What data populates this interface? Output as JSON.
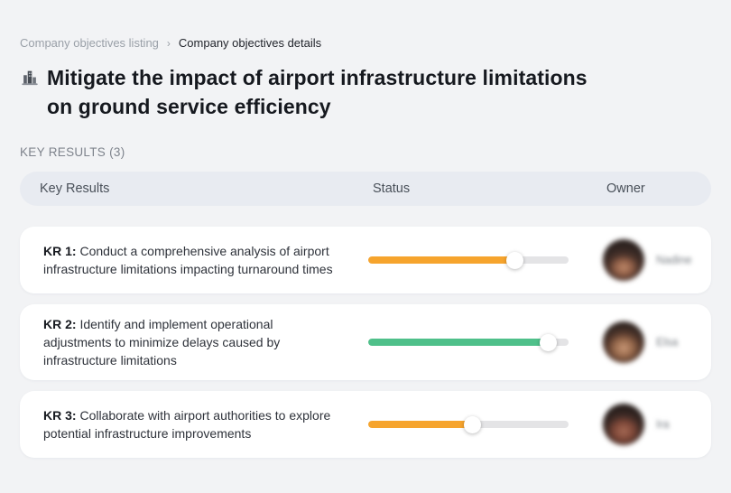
{
  "breadcrumb": {
    "parent": "Company objectives listing",
    "separator": "›",
    "current": "Company objectives details"
  },
  "page": {
    "title_line1": "Mitigate the impact of airport infrastructure limitations",
    "title_line2": "on ground service efficiency",
    "title_icon": "city-buildings-icon",
    "section_label": "KEY RESULTS (3)"
  },
  "table": {
    "headers": {
      "key_results": "Key Results",
      "status": "Status",
      "owner": "Owner"
    }
  },
  "rows": [
    {
      "kr_label": "KR 1:",
      "description": " Conduct a comprehensive analysis of airport infrastructure limitations impacting turnaround times",
      "status": {
        "percent": 73,
        "color": "#F6A42D"
      },
      "owner": {
        "name": "Nadine"
      }
    },
    {
      "kr_label": "KR 2:",
      "description": " Identify and implement operational adjustments to minimize delays caused by infrastructure limitations",
      "status": {
        "percent": 90,
        "color": "#4FC08A"
      },
      "owner": {
        "name": "Elsa"
      }
    },
    {
      "kr_label": "KR 3:",
      "description": " Collaborate with airport authorities to explore potential infrastructure improvements",
      "status": {
        "percent": 52,
        "color": "#F6A42D"
      },
      "owner": {
        "name": "Ira"
      }
    }
  ],
  "colors": {
    "page_background": "#f2f3f5",
    "card_background": "#ffffff",
    "header_background": "#e8ebf1",
    "progress_track": "#e4e4e6",
    "progress_orange": "#F6A42D",
    "progress_green": "#4FC08A"
  }
}
